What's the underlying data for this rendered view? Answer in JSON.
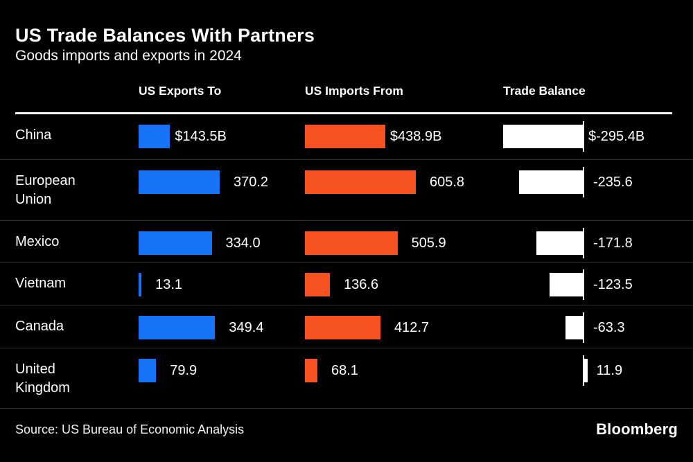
{
  "chart_data": {
    "type": "bar",
    "title": "US Trade Balances With Partners",
    "subtitle": "Goods imports and exports in 2024",
    "columns": [
      "US Exports To",
      "US Imports From",
      "Trade Balance"
    ],
    "rows": [
      {
        "name": "China",
        "exports": 143.5,
        "exports_label": "$143.5B",
        "imports": 438.9,
        "imports_label": "$438.9B",
        "balance": -295.4,
        "balance_label": "$-295.4B"
      },
      {
        "name": "European Union",
        "exports": 370.2,
        "exports_label": "370.2",
        "imports": 605.8,
        "imports_label": "605.8",
        "balance": -235.6,
        "balance_label": "-235.6"
      },
      {
        "name": "Mexico",
        "exports": 334.0,
        "exports_label": "334.0",
        "imports": 505.9,
        "imports_label": "505.9",
        "balance": -171.8,
        "balance_label": "-171.8"
      },
      {
        "name": "Vietnam",
        "exports": 13.1,
        "exports_label": "13.1",
        "imports": 136.6,
        "imports_label": "136.6",
        "balance": -123.5,
        "balance_label": "-123.5"
      },
      {
        "name": "Canada",
        "exports": 349.4,
        "exports_label": "349.4",
        "imports": 412.7,
        "imports_label": "412.7",
        "balance": -63.3,
        "balance_label": "-63.3"
      },
      {
        "name": "United Kingdom",
        "exports": 79.9,
        "exports_label": "79.9",
        "imports": 68.1,
        "imports_label": "68.1",
        "balance": 11.9,
        "balance_label": "11.9"
      }
    ],
    "source": "Source: US Bureau of Economic Analysis",
    "brand": "Bloomberg",
    "colors": {
      "background": "#000000",
      "text": "#ffffff",
      "exports_bar": "#1673f6",
      "imports_bar": "#f75322",
      "balance_bar": "#ffffff",
      "separator": "#332f2f",
      "rule": "#ffffff"
    },
    "layout": {
      "orientation": "horizontal-bars",
      "zero_axis": "trade-balance-column",
      "columns_scaled_independently": true
    }
  }
}
